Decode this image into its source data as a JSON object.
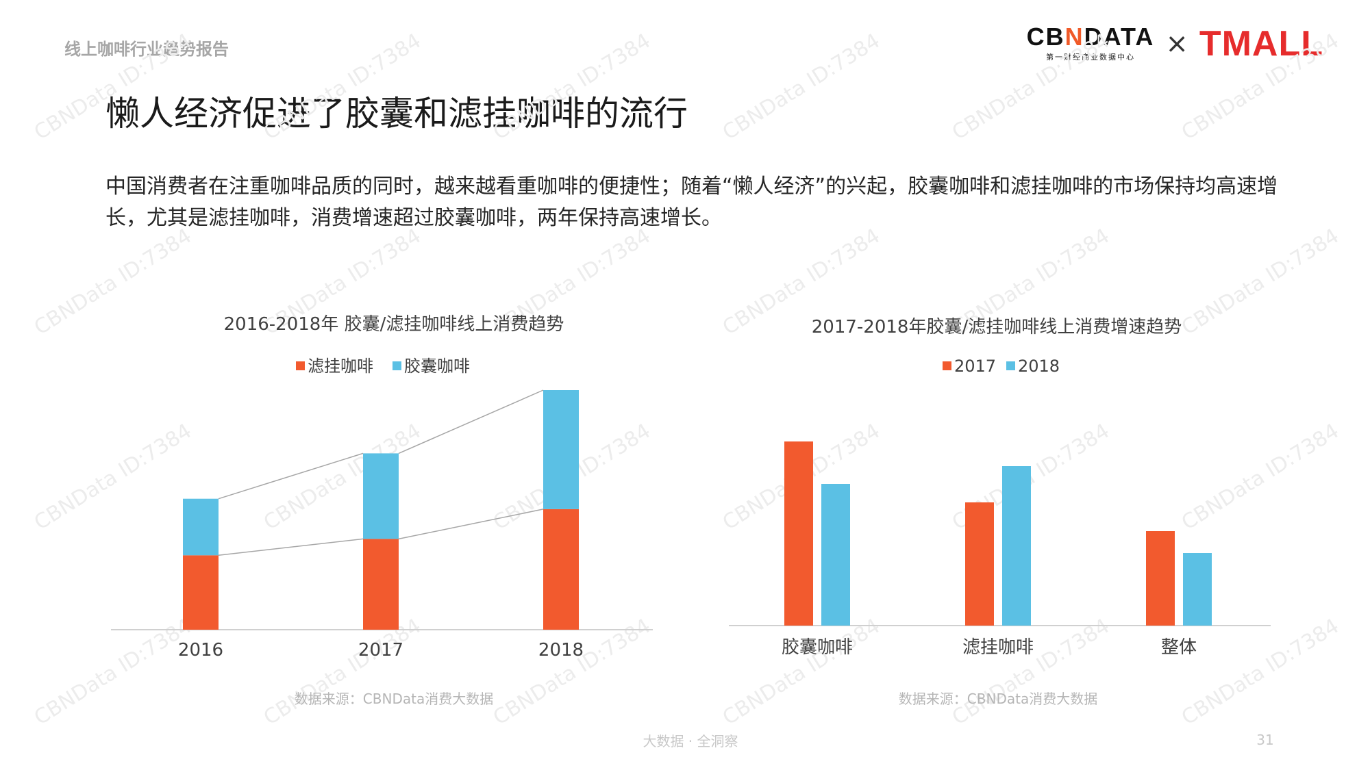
{
  "header": {
    "report_name": "线上咖啡行业趋势报告",
    "logo_cbn_parts": [
      "CB",
      "N",
      "DATA"
    ],
    "logo_cbn_sub": "第一财经商业数据中心",
    "logo_x": "×",
    "logo_tmall": "TMALL"
  },
  "title": "懒人经济促进了胶囊和滤挂咖啡的流行",
  "description": "中国消费者在注重咖啡品质的同时，越来越看重咖啡的便捷性；随着“懒人经济”的兴起，胶囊咖啡和滤挂咖啡的市场保持均高速增长，尤其是滤挂咖啡，消费增速超过胶囊咖啡，两年保持高速增长。",
  "watermark": "CBNData ID:7384",
  "footer": {
    "slogan": "大数据 · 全洞察",
    "page_number": "31"
  },
  "colors": {
    "orange": "#f25a2e",
    "blue": "#5bc0e4",
    "axis": "#d0d0d0",
    "connector": "#a6a6a6"
  },
  "chart_data": [
    {
      "type": "bar",
      "stacked": true,
      "title": "2016-2018年 胶囊/滤挂咖啡线上消费趋势",
      "categories": [
        "2016",
        "2017",
        "2018"
      ],
      "series": [
        {
          "name": "滤挂咖啡",
          "color": "#f25a2e",
          "values": [
            1.0,
            1.22,
            1.62
          ]
        },
        {
          "name": "胶囊咖啡",
          "color": "#5bc0e4",
          "values": [
            0.76,
            1.15,
            1.6
          ]
        }
      ],
      "ylim": [
        0,
        3.22
      ],
      "connector_lines": true,
      "legend_position": "top",
      "grid": false,
      "source": "数据来源：CBNData消费大数据"
    },
    {
      "type": "bar",
      "title": "2017-2018年胶囊/滤挂咖啡线上消费增速趋势",
      "categories": [
        "胶囊咖啡",
        "滤挂咖啡",
        "整体"
      ],
      "series": [
        {
          "name": "2017",
          "color": "#f25a2e",
          "values": [
            269,
            180,
            138
          ]
        },
        {
          "name": "2018",
          "color": "#5bc0e4",
          "values": [
            207,
            233,
            106
          ]
        }
      ],
      "ylim": [
        0,
        300
      ],
      "legend_position": "top",
      "grid": false,
      "source": "数据来源：CBNData消费大数据"
    }
  ]
}
